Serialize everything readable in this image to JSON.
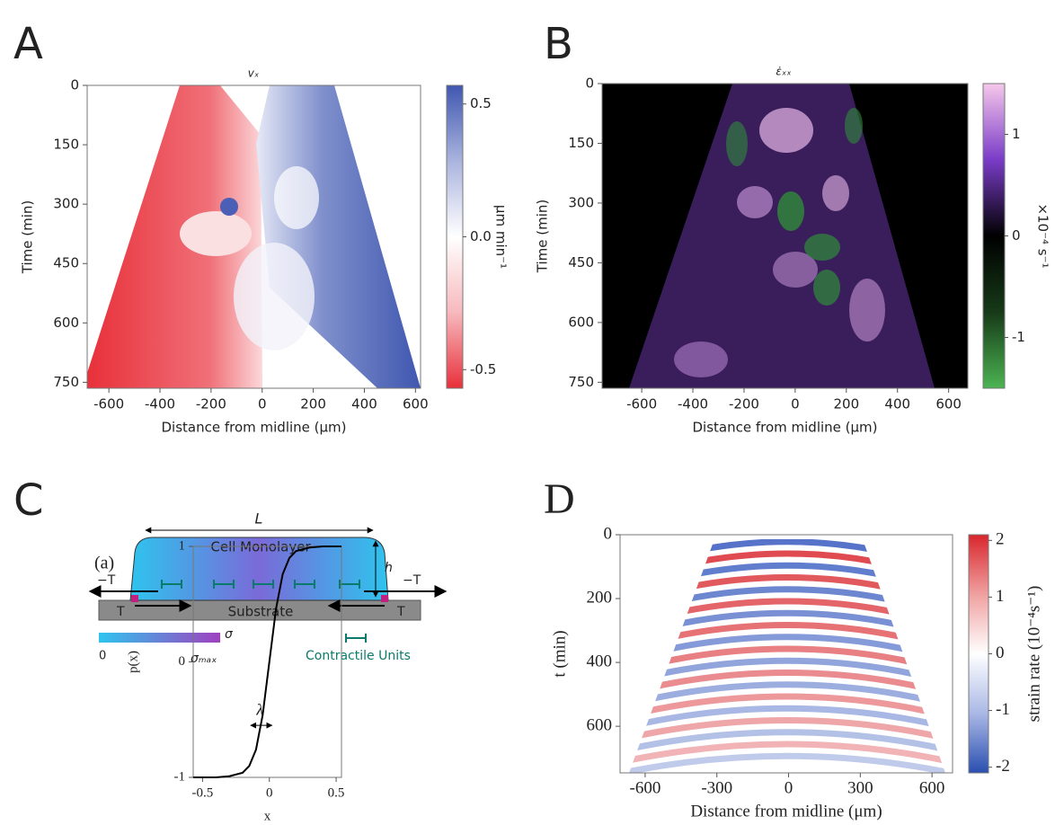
{
  "diagram": {
    "panel_label": "C",
    "length_label": "L",
    "layer_label": "Cell Monolayer",
    "height_label": "h",
    "tension_left": "−T",
    "tension_right": "−T",
    "traction_left": "T",
    "traction_right": "T",
    "substrate_label": "Substrate",
    "stress_label": "σ",
    "stress_min": "0",
    "stress_max": "σₘₐₓ",
    "legend_label": "Contractile Units"
  },
  "chart_data": [
    {
      "type": "heatmap",
      "panel_label": "A",
      "title": "vₓ",
      "x_label": "Distance from midline (μm)",
      "y_label": "Time (min)",
      "xlim": [
        -685,
        620
      ],
      "xticks": [
        -600,
        -400,
        -200,
        0,
        200,
        400,
        600
      ],
      "ylim": [
        0,
        765
      ],
      "yticks": [
        0,
        150,
        300,
        450,
        600,
        750
      ],
      "colorbar": {
        "label": "μm min⁻¹",
        "clim": [
          -0.57,
          0.57
        ],
        "cticks": [
          -0.5,
          {
            "value": 0,
            "label": "0.0"
          },
          0.5
        ],
        "colors": [
          "#e8303a",
          "#f7b9bd",
          "#ffffff",
          "#aab4de",
          "#3f57b0"
        ]
      }
    },
    {
      "type": "heatmap",
      "panel_label": "B",
      "title": "ε̇ₓₓ",
      "x_label": "Distance from midline (μm)",
      "y_label": "Time (min)",
      "xlim": [
        -755,
        675
      ],
      "xticks": [
        -600,
        -400,
        -200,
        0,
        200,
        400,
        600
      ],
      "ylim": [
        0,
        765
      ],
      "yticks": [
        0,
        150,
        300,
        450,
        600,
        750
      ],
      "colorbar": {
        "label": "×10⁻⁴ s⁻¹",
        "clim": [
          -1.5,
          1.5
        ],
        "cticks": [
          -1,
          0,
          1
        ],
        "colors": [
          "#4cb452",
          "#163a18",
          "#000000",
          "#7a3cc8",
          "#f6c8ea"
        ]
      }
    },
    {
      "type": "line",
      "subplot_label": "(a)",
      "x_label": "x",
      "y_label": "p(x)",
      "annotation": "λ",
      "x": [
        -0.57,
        -0.4,
        -0.3,
        -0.2,
        -0.15,
        -0.1,
        -0.05,
        0,
        0.05,
        0.1,
        0.15,
        0.2,
        0.3,
        0.4,
        0.54
      ],
      "values": [
        -1,
        -1,
        -0.99,
        -0.96,
        -0.9,
        -0.76,
        -0.46,
        0,
        0.46,
        0.76,
        0.9,
        0.96,
        0.99,
        1,
        1
      ],
      "color": "#000000",
      "xlim": [
        -0.57,
        0.54
      ],
      "xticks": [
        -0.5,
        0,
        0.5
      ],
      "ylim": [
        -1,
        1
      ],
      "yticks": [
        -1,
        0,
        1
      ]
    },
    {
      "type": "heatmap",
      "panel_label": "D",
      "x_label": "Distance from midline (μm)",
      "y_label": "t (min)",
      "xlim": [
        -705,
        686
      ],
      "xticks": [
        -600,
        -300,
        0,
        300,
        600
      ],
      "ylim": [
        0,
        746
      ],
      "yticks": [
        0,
        200,
        400,
        600
      ],
      "colorbar": {
        "label": "strain rate (10⁻⁴s⁻¹)",
        "clim": [
          -2.1,
          2.1
        ],
        "cticks": [
          -2,
          -1,
          0,
          1,
          2
        ],
        "colors": [
          "#2a4fb0",
          "#aab8e6",
          "#ffffff",
          "#f0a0a0",
          "#d8262c"
        ]
      }
    }
  ]
}
